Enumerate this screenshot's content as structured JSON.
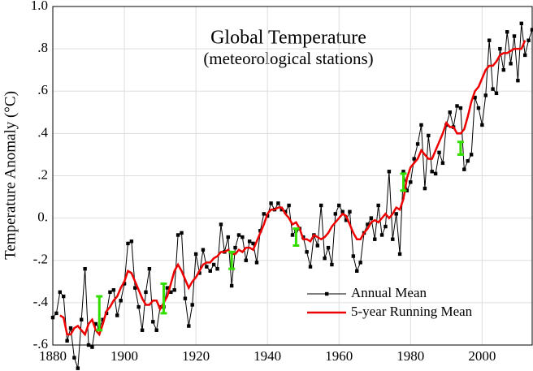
{
  "chart_data": {
    "type": "line",
    "title": "Global Temperature",
    "subtitle": "(meteorological stations)",
    "y_label": "Temperature Anomaly (°C)",
    "x": [
      1880,
      1881,
      1882,
      1883,
      1884,
      1885,
      1886,
      1887,
      1888,
      1889,
      1890,
      1891,
      1892,
      1893,
      1894,
      1895,
      1896,
      1897,
      1898,
      1899,
      1900,
      1901,
      1902,
      1903,
      1904,
      1905,
      1906,
      1907,
      1908,
      1909,
      1910,
      1911,
      1912,
      1913,
      1914,
      1915,
      1916,
      1917,
      1918,
      1919,
      1920,
      1921,
      1922,
      1923,
      1924,
      1925,
      1926,
      1927,
      1928,
      1929,
      1930,
      1931,
      1932,
      1933,
      1934,
      1935,
      1936,
      1937,
      1938,
      1939,
      1940,
      1941,
      1942,
      1943,
      1944,
      1945,
      1946,
      1947,
      1948,
      1949,
      1950,
      1951,
      1952,
      1953,
      1954,
      1955,
      1956,
      1957,
      1958,
      1959,
      1960,
      1961,
      1962,
      1963,
      1964,
      1965,
      1966,
      1967,
      1968,
      1969,
      1970,
      1971,
      1972,
      1973,
      1974,
      1975,
      1976,
      1977,
      1978,
      1979,
      1980,
      1981,
      1982,
      1983,
      1984,
      1985,
      1986,
      1987,
      1988,
      1989,
      1990,
      1991,
      1992,
      1993,
      1994,
      1995,
      1996,
      1997,
      1998,
      1999,
      2000,
      2001,
      2002,
      2003,
      2004,
      2005,
      2006,
      2007,
      2008,
      2009,
      2010,
      2011,
      2012,
      2013,
      2014
    ],
    "series": [
      {
        "name": "Annual Mean",
        "color": "#000000",
        "markers": true,
        "values": [
          -0.47,
          -0.45,
          -0.35,
          -0.37,
          -0.58,
          -0.52,
          -0.66,
          -0.71,
          -0.48,
          -0.24,
          -0.6,
          -0.61,
          -0.5,
          -0.52,
          -0.48,
          -0.45,
          -0.35,
          -0.34,
          -0.46,
          -0.39,
          -0.31,
          -0.12,
          -0.11,
          -0.33,
          -0.42,
          -0.53,
          -0.35,
          -0.24,
          -0.49,
          -0.53,
          -0.42,
          -0.42,
          -0.33,
          -0.35,
          -0.34,
          -0.08,
          -0.07,
          -0.38,
          -0.51,
          -0.41,
          -0.17,
          -0.26,
          -0.15,
          -0.23,
          -0.25,
          -0.22,
          -0.24,
          -0.03,
          -0.16,
          -0.09,
          -0.32,
          -0.14,
          -0.08,
          -0.09,
          -0.2,
          -0.11,
          -0.12,
          -0.21,
          -0.06,
          0.02,
          0.01,
          0.07,
          0.04,
          0.07,
          0.04,
          0.03,
          0.06,
          -0.08,
          -0.06,
          -0.05,
          -0.09,
          -0.16,
          -0.23,
          -0.08,
          -0.13,
          0.06,
          -0.19,
          -0.14,
          -0.22,
          0.02,
          0.06,
          0.03,
          -0.01,
          0.03,
          -0.18,
          -0.25,
          -0.21,
          -0.07,
          -0.03,
          0.0,
          -0.1,
          0.06,
          -0.08,
          -0.04,
          0.22,
          -0.1,
          0.02,
          -0.17,
          0.22,
          0.13,
          0.17,
          0.28,
          0.35,
          0.44,
          0.14,
          0.39,
          0.22,
          0.21,
          0.31,
          0.26,
          0.44,
          0.5,
          0.43,
          0.53,
          0.52,
          0.23,
          0.27,
          0.3,
          0.57,
          0.52,
          0.44,
          0.58,
          0.84,
          0.61,
          0.59,
          0.8,
          0.7,
          0.88,
          0.73,
          0.86,
          0.65,
          0.92,
          0.77,
          0.84,
          0.89
        ]
      },
      {
        "name": "5-year Running Mean",
        "color": "#ee0000",
        "markers": false,
        "values": [
          null,
          null,
          -0.46,
          -0.47,
          -0.55,
          -0.55,
          -0.52,
          -0.51,
          -0.53,
          -0.55,
          -0.5,
          -0.48,
          -0.53,
          -0.55,
          -0.5,
          -0.44,
          -0.42,
          -0.39,
          -0.37,
          -0.33,
          -0.3,
          -0.25,
          -0.26,
          -0.3,
          -0.34,
          -0.38,
          -0.41,
          -0.41,
          -0.39,
          -0.39,
          -0.43,
          -0.4,
          -0.37,
          -0.31,
          -0.25,
          -0.22,
          -0.25,
          -0.29,
          -0.33,
          -0.3,
          -0.28,
          -0.25,
          -0.22,
          -0.21,
          -0.21,
          -0.19,
          -0.18,
          -0.16,
          -0.16,
          -0.15,
          -0.17,
          -0.17,
          -0.15,
          -0.16,
          -0.14,
          -0.14,
          -0.15,
          -0.11,
          -0.07,
          -0.03,
          0.02,
          0.04,
          0.04,
          0.05,
          0.05,
          0.02,
          0.0,
          -0.03,
          -0.02,
          -0.05,
          -0.1,
          -0.1,
          -0.11,
          -0.08,
          -0.09,
          -0.1,
          -0.09,
          -0.07,
          -0.04,
          -0.02,
          0.0,
          0.02,
          0.01,
          -0.03,
          -0.07,
          -0.1,
          -0.1,
          -0.07,
          -0.05,
          -0.02,
          -0.01,
          -0.02,
          0.0,
          0.02,
          0.0,
          0.02,
          0.05,
          0.04,
          0.09,
          0.19,
          0.24,
          0.26,
          0.28,
          0.32,
          0.3,
          0.28,
          0.28,
          0.32,
          0.36,
          0.4,
          0.45,
          0.43,
          0.43,
          0.4,
          0.4,
          0.42,
          0.48,
          0.55,
          0.6,
          0.62,
          0.66,
          0.7,
          0.72,
          0.72,
          0.74,
          0.77,
          0.78,
          0.78,
          0.79,
          0.8,
          0.8,
          0.8,
          0.84,
          null,
          null
        ]
      }
    ],
    "error_bars": {
      "color": "#33dd00",
      "items": [
        {
          "x": 1893,
          "value": -0.45,
          "error": 0.08
        },
        {
          "x": 1911,
          "value": -0.38,
          "error": 0.07
        },
        {
          "x": 1930,
          "value": -0.2,
          "error": 0.04
        },
        {
          "x": 1948,
          "value": -0.09,
          "error": 0.04
        },
        {
          "x": 1978,
          "value": 0.17,
          "error": 0.04
        },
        {
          "x": 1994,
          "value": 0.33,
          "error": 0.03
        }
      ]
    },
    "xlim": [
      1880,
      2014
    ],
    "xticks": [
      1880,
      1900,
      1920,
      1940,
      1960,
      1980,
      2000
    ],
    "ylim": [
      -0.6,
      1.0
    ],
    "yticks": [
      {
        "value": -0.6,
        "label": "-.6"
      },
      {
        "value": -0.4,
        "label": "-.4"
      },
      {
        "value": -0.2,
        "label": "-.2"
      },
      {
        "value": 0,
        "label": "0."
      },
      {
        "value": 0.2,
        "label": ".2"
      },
      {
        "value": 0.4,
        "label": ".4"
      },
      {
        "value": 0.6,
        "label": ".6"
      },
      {
        "value": 0.8,
        "label": ".8"
      },
      {
        "value": 1.0,
        "label": "1.0"
      }
    ],
    "grid": true,
    "legend": "lower right"
  }
}
